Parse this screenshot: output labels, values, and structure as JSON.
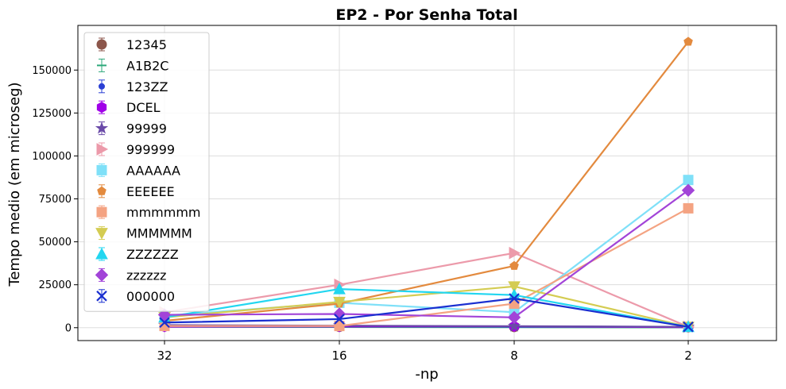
{
  "chart_data": {
    "type": "line",
    "title": "EP2 - Por Senha Total",
    "xlabel": "-np",
    "ylabel": "Tempo medio (em microseg)",
    "categories": [
      "32",
      "16",
      "8",
      "2"
    ],
    "yticks": [
      0,
      25000,
      50000,
      75000,
      100000,
      125000,
      150000
    ],
    "ylim": [
      -7500,
      176000
    ],
    "grid": true,
    "legend_position": "upper-left",
    "series": [
      {
        "name": "12345",
        "color": "#8c564b",
        "marker": "circle",
        "values": [
          700,
          500,
          400,
          300
        ]
      },
      {
        "name": "A1B2C",
        "color": "#2ca87a",
        "marker": "hline",
        "values": [
          500,
          400,
          300,
          200
        ]
      },
      {
        "name": "123ZZ",
        "color": "#2a3fd4",
        "marker": "smallcircle",
        "values": [
          1000,
          800,
          600,
          400
        ]
      },
      {
        "name": "DCEL",
        "color": "#a000e8",
        "marker": "hexagon",
        "values": [
          600,
          700,
          800,
          300
        ]
      },
      {
        "name": "99999",
        "color": "#6a4aa8",
        "marker": "star",
        "values": [
          1500,
          1200,
          900,
          500
        ]
      },
      {
        "name": "999999",
        "color": "#ec9aaa",
        "marker": "triangle-right",
        "values": [
          9000,
          25000,
          43500,
          500
        ]
      },
      {
        "name": "AAAAAA",
        "color": "#7fe0f8",
        "marker": "square",
        "values": [
          7000,
          14500,
          9000,
          86000
        ]
      },
      {
        "name": "EEEEEE",
        "color": "#e38a3e",
        "marker": "pentagon",
        "values": [
          4000,
          14000,
          36000,
          166500
        ]
      },
      {
        "name": "mmmmmm",
        "color": "#f4a382",
        "marker": "square",
        "values": [
          1000,
          1000,
          14000,
          69500
        ]
      },
      {
        "name": "MMMMMM",
        "color": "#d4cc52",
        "marker": "triangle-down",
        "values": [
          6000,
          15000,
          24000,
          500
        ]
      },
      {
        "name": "ZZZZZZ",
        "color": "#22d6f0",
        "marker": "triangle-up",
        "values": [
          6000,
          22500,
          19000,
          500
        ]
      },
      {
        "name": "zzzzzz",
        "color": "#a244d8",
        "marker": "diamond",
        "values": [
          7500,
          8000,
          6000,
          80000
        ]
      },
      {
        "name": "000000",
        "color": "#1a2fd0",
        "marker": "x",
        "values": [
          3000,
          5000,
          17000,
          500
        ]
      }
    ]
  }
}
